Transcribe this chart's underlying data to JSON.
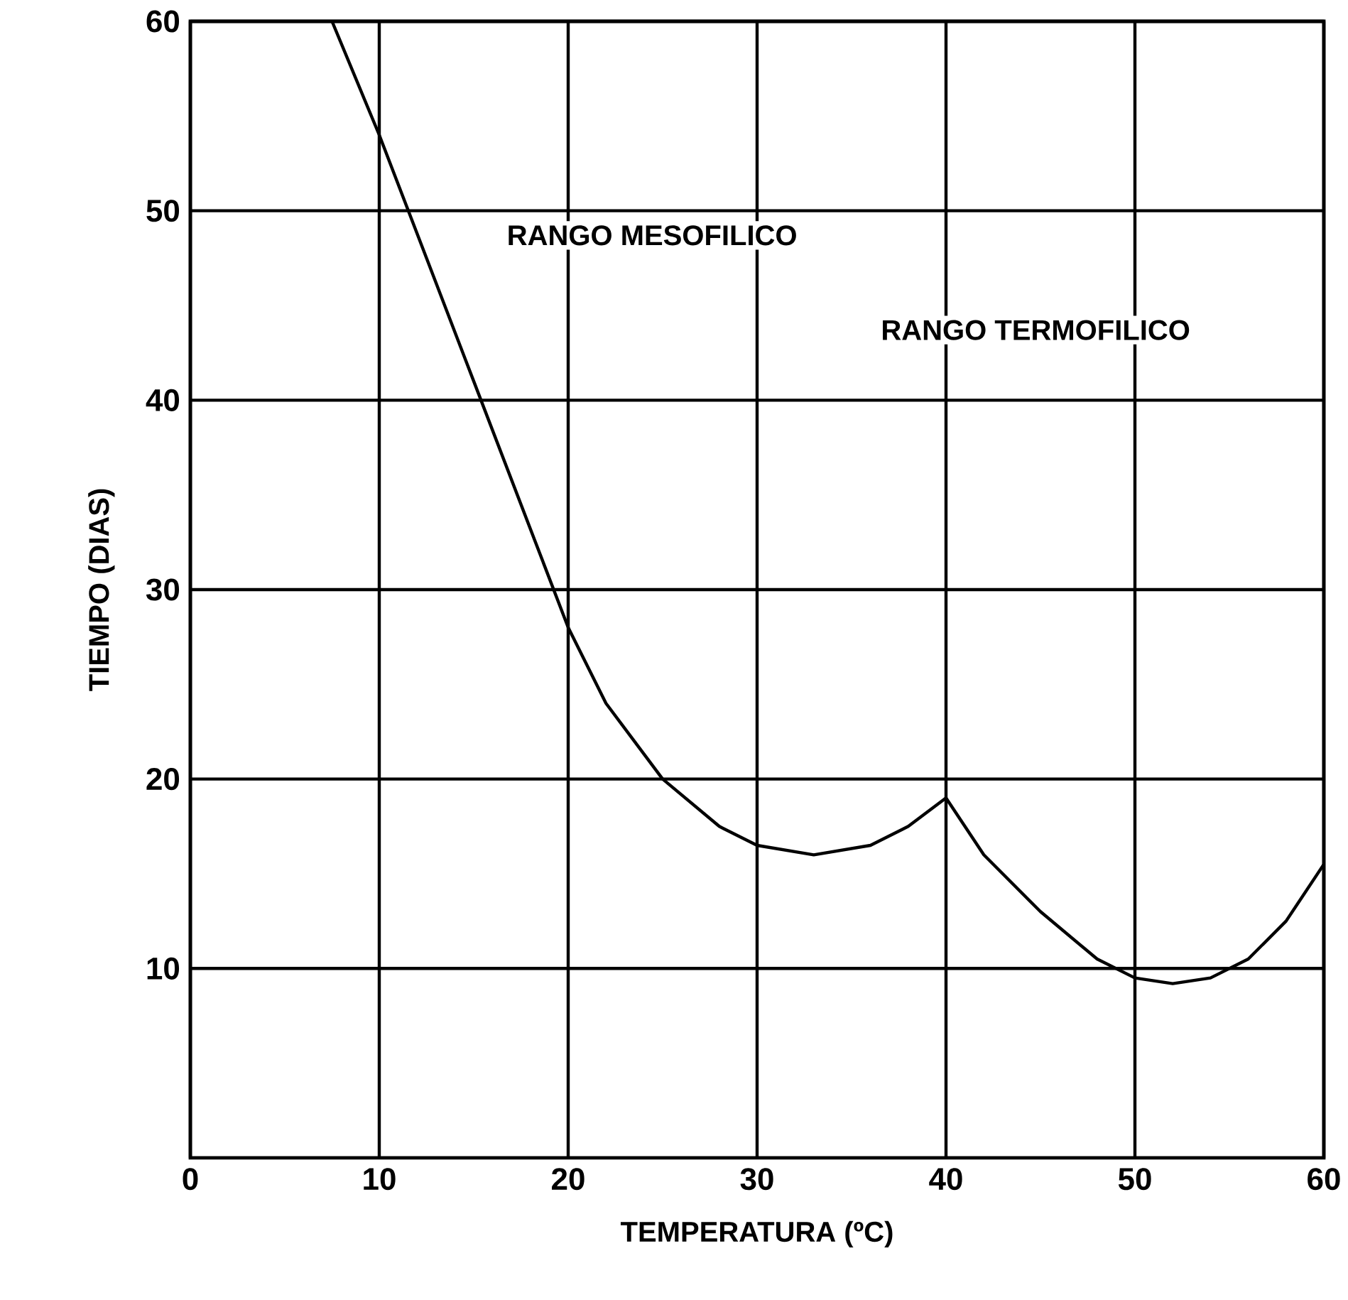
{
  "chart_data": {
    "type": "line",
    "xlabel": "TEMPERATURA (ºC)",
    "ylabel": "TIEMPO (DIAS)",
    "annotations": [
      "RANGO MESOFILICO",
      "RANGO TERMOFILICO"
    ],
    "series": [
      {
        "color": "#000000",
        "x": [
          7.5,
          10,
          12.5,
          15,
          17.5,
          20,
          22,
          25,
          28,
          30,
          33,
          36,
          38,
          40,
          42,
          45,
          48,
          50,
          52,
          54,
          56,
          58,
          60
        ],
        "values": [
          60,
          54,
          47.5,
          41,
          34.5,
          28,
          24,
          20,
          17.5,
          16.5,
          16,
          16.5,
          17.5,
          19,
          16,
          13,
          10.5,
          9.5,
          9.2,
          9.5,
          10.5,
          12.5,
          15.5
        ]
      }
    ],
    "xlim": [
      0,
      60
    ],
    "ylim": [
      0,
      60
    ],
    "xticks": [
      0,
      10,
      20,
      30,
      40,
      50,
      60
    ],
    "yticks": [
      10,
      20,
      30,
      40,
      50,
      60
    ],
    "grid": true,
    "marker": "none",
    "line_style": "solid"
  }
}
